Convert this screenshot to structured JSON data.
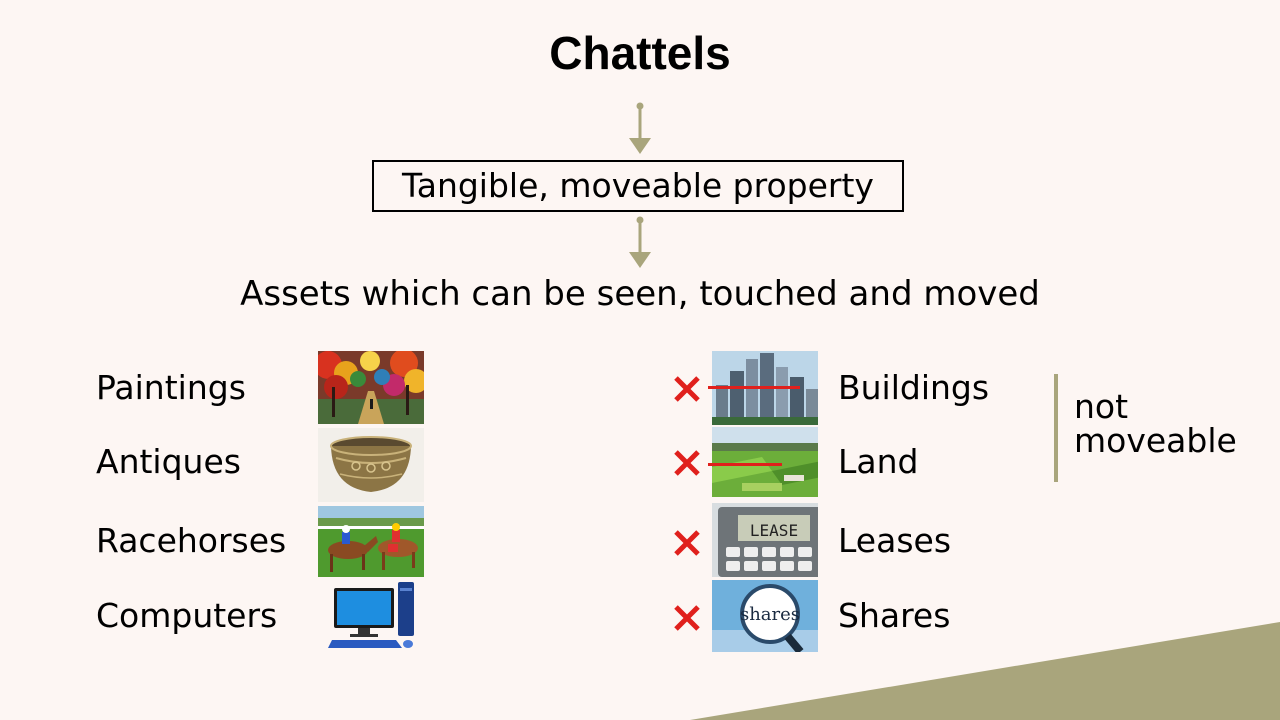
{
  "title": "Chattels",
  "definition": "Tangible, moveable property",
  "explanation": "Assets which can be seen, touched and moved",
  "chattels": [
    {
      "label": "Paintings",
      "image": "painting-image"
    },
    {
      "label": "Antiques",
      "image": "antique-bowl-image"
    },
    {
      "label": "Racehorses",
      "image": "racehorses-image"
    },
    {
      "label": "Computers",
      "image": "computer-image"
    }
  ],
  "not_chattels": [
    {
      "label": "Buildings",
      "image": "buildings-image",
      "crossed": true
    },
    {
      "label": "Land",
      "image": "land-image",
      "crossed": true
    },
    {
      "label": "Leases",
      "image": "lease-calculator-image",
      "crossed": true
    },
    {
      "label": "Shares",
      "image": "shares-magnifier-image",
      "crossed": true
    }
  ],
  "note": {
    "line1": "not",
    "line2": "moveable"
  },
  "lease_image_text": "LEASE",
  "shares_image_text": "shares",
  "colors": {
    "background": "#fdf6f3",
    "arrow": "#a9a57c",
    "cross": "#e0201c",
    "corner": "#a9a57c"
  }
}
